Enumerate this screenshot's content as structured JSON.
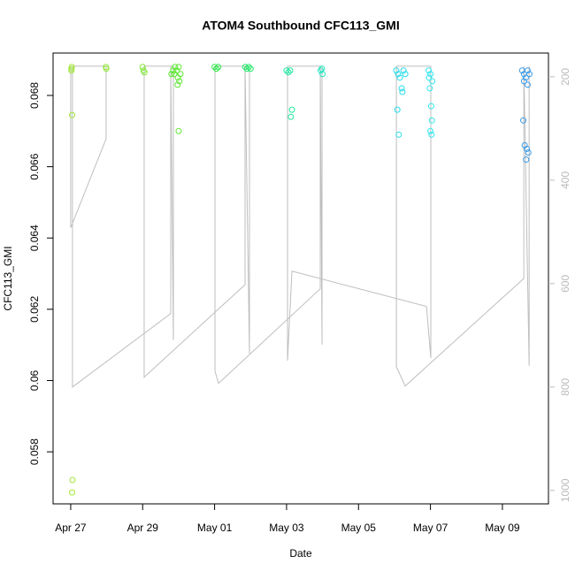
{
  "chart_data": {
    "type": "scatter",
    "title": "ATOM4 Southbound CFC113_GMI",
    "x_label": "Date",
    "y_label": "CFC113_GMI",
    "xlim": [
      -0.49,
      13.28
    ],
    "xticks": [
      {
        "value": 0,
        "label": "Apr 27"
      },
      {
        "value": 2,
        "label": "Apr 29"
      },
      {
        "value": 4,
        "label": "May 01"
      },
      {
        "value": 6,
        "label": "May 03"
      },
      {
        "value": 8,
        "label": "May 05"
      },
      {
        "value": 10,
        "label": "May 07"
      },
      {
        "value": 12,
        "label": "May 09"
      }
    ],
    "ylim": [
      0.05654,
      0.06919
    ],
    "yticks": [
      0.058,
      0.06,
      0.062,
      0.064,
      0.066,
      0.068
    ],
    "y2lim": [
      1026,
      154
    ],
    "y2ticks": [
      200,
      400,
      600,
      800,
      1000
    ],
    "series": [
      {
        "color": "#a3e83a",
        "x": [
          0.02,
          0.03,
          0.04,
          0.02,
          0.05,
          0.04
        ],
        "values": [
          0.0687,
          0.0688,
          0.06745,
          0.06875,
          0.05721,
          0.05686
        ]
      },
      {
        "color": "#96e83a",
        "x": [
          0.98,
          0.99
        ],
        "values": [
          0.0688,
          0.06875
        ]
      },
      {
        "color": "#82e83a",
        "x": [
          2.0,
          2.02,
          2.05
        ],
        "values": [
          0.0688,
          0.0687,
          0.06865
        ]
      },
      {
        "color": "#5ee834",
        "x": [
          2.8,
          2.85,
          2.9,
          2.95,
          3.0,
          2.88,
          2.98,
          3.02,
          2.97,
          3.0,
          3.05
        ],
        "values": [
          0.0686,
          0.0687,
          0.0688,
          0.0687,
          0.0688,
          0.0686,
          0.0685,
          0.0684,
          0.0683,
          0.067,
          0.0686
        ]
      },
      {
        "color": "#2ee84a",
        "x": [
          4.0,
          4.05,
          4.1
        ],
        "values": [
          0.0688,
          0.06875,
          0.0688
        ]
      },
      {
        "color": "#20e868",
        "x": [
          4.85,
          4.9,
          4.95,
          5.0
        ],
        "values": [
          0.0688,
          0.06875,
          0.0688,
          0.06875
        ]
      },
      {
        "color": "#20e8a0",
        "x": [
          6.0,
          6.05,
          6.1,
          6.15,
          6.12
        ],
        "values": [
          0.0687,
          0.06865,
          0.0687,
          0.0676,
          0.0674
        ]
      },
      {
        "color": "#22e8c0",
        "x": [
          6.95,
          7.0,
          6.98
        ],
        "values": [
          0.0687,
          0.0686,
          0.06875
        ]
      },
      {
        "color": "#28dce8",
        "x": [
          9.05,
          9.1,
          9.15,
          9.2,
          9.25,
          9.3,
          9.08,
          9.12,
          9.22
        ],
        "values": [
          0.0687,
          0.0686,
          0.0685,
          0.0682,
          0.0687,
          0.0686,
          0.0676,
          0.0669,
          0.0681
        ]
      },
      {
        "color": "#2ee6f0",
        "x": [
          9.95,
          10.0,
          10.05,
          9.98,
          10.02,
          9.96,
          10.04,
          10.0,
          10.03
        ],
        "values": [
          0.0687,
          0.0686,
          0.0684,
          0.0682,
          0.0677,
          0.0685,
          0.0673,
          0.067,
          0.0669
        ]
      },
      {
        "color": "#3a9be8",
        "x": [
          12.55,
          12.6,
          12.65,
          12.7,
          12.75,
          12.58,
          12.62,
          12.68,
          12.72,
          12.66,
          12.7,
          12.6
        ],
        "values": [
          0.0687,
          0.0686,
          0.0685,
          0.0683,
          0.0686,
          0.0673,
          0.0666,
          0.0665,
          0.0664,
          0.0662,
          0.0687,
          0.0684
        ]
      },
      {
        "color": "#bebebe",
        "axis": "y2",
        "line": true,
        "x": [
          0,
          0,
          0.984,
          0.984,
          0.049,
          0.049,
          2.78,
          2.78,
          2.854,
          2.854,
          2.042,
          2.042,
          4.846,
          4.846,
          4.969,
          4.969,
          4.01,
          4.01,
          4.108,
          6.937,
          6.937,
          6.986,
          6.986,
          6.027,
          6.027,
          6.15,
          9.89,
          10.01,
          10.01,
          9.053,
          9.053,
          9.299,
          12.595,
          12.595,
          12.743,
          12.743
        ],
        "values": [
          179.5,
          492,
          320,
          179.5,
          179.5,
          800,
          658,
          179.5,
          709,
          179.5,
          179.5,
          781,
          602,
          179.5,
          735,
          179.5,
          179.5,
          769,
          793,
          610,
          179.5,
          718,
          179.5,
          179.5,
          749,
          576,
          644,
          744,
          179.5,
          179.5,
          761,
          798,
          590,
          179.5,
          759,
          179.5
        ]
      }
    ]
  }
}
